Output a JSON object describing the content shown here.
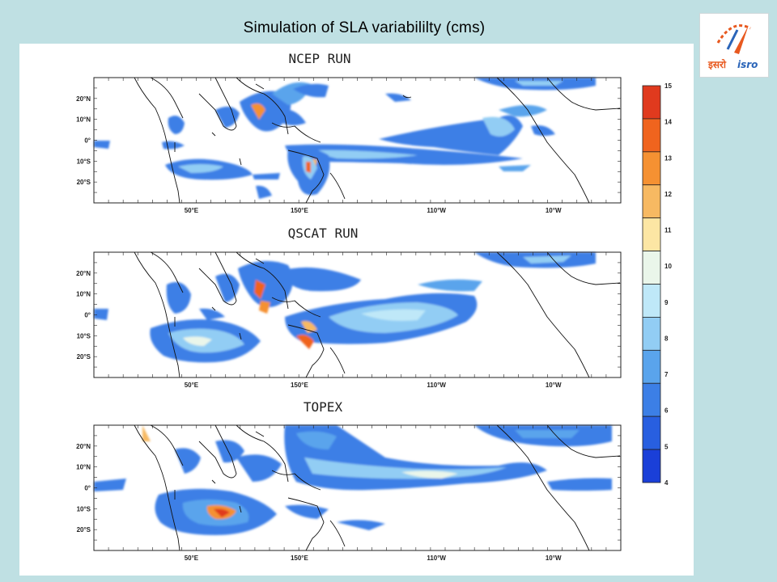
{
  "slide": {
    "title": "Simulation of SLA variabililty (cms)"
  },
  "logo": {
    "label": "इसरो isro",
    "hindi": "इसरो",
    "latin": "isro",
    "colors": {
      "primary": "#e8591f",
      "accent": "#2a64b8"
    }
  },
  "map_panels": [
    {
      "title": "NCEP RUN"
    },
    {
      "title": "QSCAT RUN"
    },
    {
      "title": "TOPEX"
    }
  ],
  "axes": {
    "lat_ticks": [
      "20°N",
      "10°N",
      "0°",
      "10°S",
      "20°S"
    ],
    "lon_ticks": [
      "50°E",
      "150°E",
      "110°W",
      "10°W"
    ],
    "lat_range": [
      -30,
      30
    ]
  },
  "colorbar": {
    "labels": [
      "15",
      "14",
      "13",
      "12",
      "11",
      "10",
      "9",
      "8",
      "7",
      "6",
      "5",
      "4"
    ],
    "colors": [
      "#e03a1e",
      "#f0641e",
      "#f59132",
      "#f7b962",
      "#fce6a4",
      "#eaf6ea",
      "#bfe8f8",
      "#92cdf4",
      "#5aa4ec",
      "#3c7fe6",
      "#285fe0",
      "#1a3fd8"
    ]
  }
}
